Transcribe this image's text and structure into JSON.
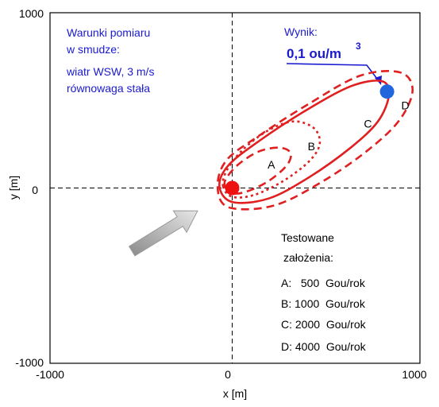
{
  "chart_data": {
    "type": "line",
    "xlabel": "x [m]",
    "ylabel": "y [m]",
    "xlim": [
      -1000,
      1000
    ],
    "ylim": [
      -1000,
      1000
    ],
    "xticks": [
      "-1000",
      "0",
      "1000"
    ],
    "yticks": [
      "1000",
      "0",
      "-1000"
    ],
    "grid": false,
    "conditions_title": "Warunki pomiaru",
    "conditions_title2": "w smudze:",
    "conditions_line1": "wiatr WSW, 3 m/s",
    "conditions_line2": "równowaga stała",
    "result_title": "Wynik:",
    "result_value": "0,1 ou/m",
    "result_exponent": "3",
    "legend_title": "Testowane",
    "legend_title2": "założenia:",
    "legend_items": [
      "A:   500  Gou/rok",
      "B: 1000  Gou/rok",
      "C: 2000  Gou/rok",
      "D: 4000  Gou/rok"
    ],
    "source_point": {
      "x": 0,
      "y": 0
    },
    "receptor_point": {
      "x": 850,
      "y": 550
    },
    "series": [
      {
        "name": "A",
        "style": "dashed",
        "color": "#e02020",
        "points": [
          [
            -40,
            10
          ],
          [
            0,
            -30
          ],
          [
            80,
            -20
          ],
          [
            200,
            40
          ],
          [
            300,
            130
          ],
          [
            320,
            200
          ],
          [
            260,
            230
          ],
          [
            150,
            210
          ],
          [
            40,
            140
          ],
          [
            -30,
            60
          ],
          [
            -40,
            10
          ]
        ]
      },
      {
        "name": "B",
        "style": "dotted",
        "color": "#e02020",
        "points": [
          [
            -50,
            10
          ],
          [
            0,
            -50
          ],
          [
            120,
            -40
          ],
          [
            280,
            40
          ],
          [
            420,
            150
          ],
          [
            480,
            250
          ],
          [
            450,
            340
          ],
          [
            340,
            380
          ],
          [
            200,
            330
          ],
          [
            60,
            220
          ],
          [
            -30,
            100
          ],
          [
            -50,
            10
          ]
        ]
      },
      {
        "name": "C",
        "style": "solid",
        "color": "#e02020",
        "points": [
          [
            -70,
            10
          ],
          [
            0,
            -80
          ],
          [
            200,
            -60
          ],
          [
            420,
            60
          ],
          [
            650,
            230
          ],
          [
            800,
            380
          ],
          [
            860,
            530
          ],
          [
            820,
            610
          ],
          [
            650,
            580
          ],
          [
            400,
            440
          ],
          [
            150,
            270
          ],
          [
            -20,
            130
          ],
          [
            -70,
            10
          ]
        ]
      },
      {
        "name": "D",
        "style": "dashed",
        "color": "#e02020",
        "points": [
          [
            -80,
            10
          ],
          [
            -20,
            -110
          ],
          [
            230,
            -100
          ],
          [
            500,
            40
          ],
          [
            750,
            220
          ],
          [
            920,
            390
          ],
          [
            990,
            560
          ],
          [
            920,
            660
          ],
          [
            700,
            640
          ],
          [
            420,
            480
          ],
          [
            150,
            300
          ],
          [
            -30,
            160
          ],
          [
            -80,
            10
          ]
        ]
      }
    ],
    "curve_label_positions": [
      {
        "label": "A",
        "x": 215,
        "y": 110
      },
      {
        "label": "B",
        "x": 435,
        "y": 215
      },
      {
        "label": "C",
        "x": 745,
        "y": 345
      },
      {
        "label": "D",
        "x": 950,
        "y": 450
      }
    ],
    "wind_arrow": {
      "from": [
        -550,
        -360
      ],
      "to": [
        -190,
        -130
      ],
      "color": "#b0b0b0"
    }
  }
}
